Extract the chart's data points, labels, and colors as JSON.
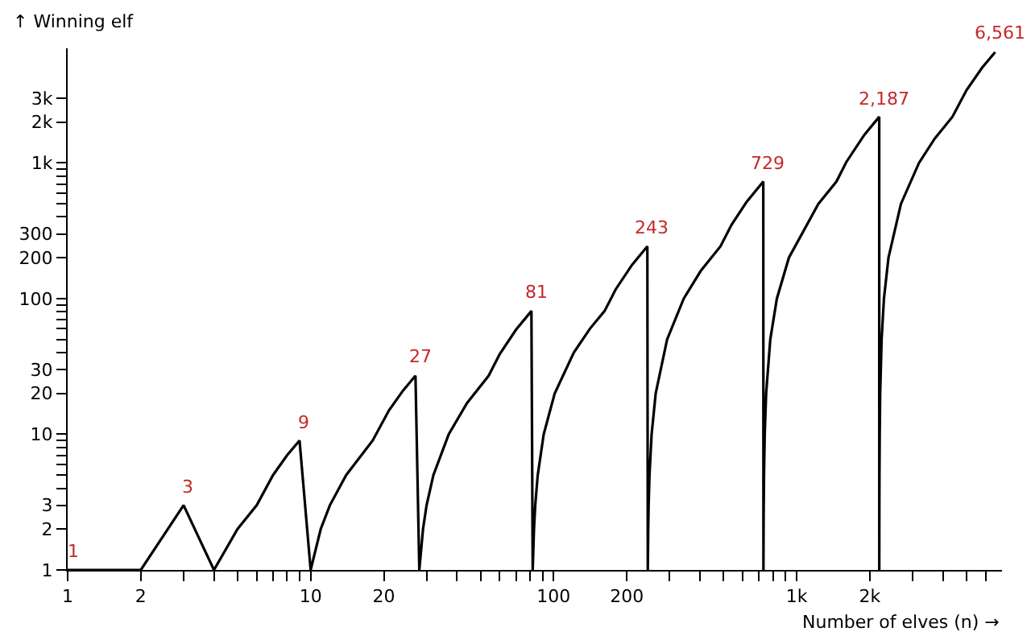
{
  "chart_data": {
    "type": "line",
    "xlabel": "Number of elves (n) →",
    "ylabel": "↑ Winning elf",
    "log": "xy",
    "marker": "none",
    "line_style": "solid",
    "xlim": [
      1,
      7000
    ],
    "ylim": [
      1,
      7000
    ],
    "xticks": [
      1,
      2,
      {
        "value": 3,
        "label": null
      },
      {
        "value": 4,
        "label": null
      },
      {
        "value": 5,
        "label": null
      },
      {
        "value": 6,
        "label": null
      },
      {
        "value": 7,
        "label": null
      },
      {
        "value": 8,
        "label": null
      },
      {
        "value": 9,
        "label": null
      },
      10,
      20,
      {
        "value": 30,
        "label": null
      },
      {
        "value": 40,
        "label": null
      },
      {
        "value": 50,
        "label": null
      },
      {
        "value": 60,
        "label": null
      },
      {
        "value": 70,
        "label": null
      },
      {
        "value": 80,
        "label": null
      },
      {
        "value": 90,
        "label": null
      },
      100,
      200,
      {
        "value": 300,
        "label": null
      },
      {
        "value": 400,
        "label": null
      },
      {
        "value": 500,
        "label": null
      },
      {
        "value": 600,
        "label": null
      },
      {
        "value": 700,
        "label": null
      },
      {
        "value": 800,
        "label": null
      },
      {
        "value": 900,
        "label": null
      },
      {
        "value": 1000,
        "label": "1k"
      },
      {
        "value": 2000,
        "label": "2k"
      },
      {
        "value": 3000,
        "label": null
      },
      {
        "value": 4000,
        "label": null
      },
      {
        "value": 5000,
        "label": null
      },
      {
        "value": 6000,
        "label": null
      }
    ],
    "yticks": [
      1,
      2,
      3,
      {
        "value": 4,
        "label": null
      },
      {
        "value": 5,
        "label": null
      },
      {
        "value": 6,
        "label": null
      },
      {
        "value": 7,
        "label": null
      },
      {
        "value": 8,
        "label": null
      },
      {
        "value": 9,
        "label": null
      },
      10,
      20,
      30,
      {
        "value": 40,
        "label": null
      },
      {
        "value": 50,
        "label": null
      },
      {
        "value": 60,
        "label": null
      },
      {
        "value": 70,
        "label": null
      },
      {
        "value": 80,
        "label": null
      },
      {
        "value": 90,
        "label": null
      },
      100,
      200,
      300,
      {
        "value": 400,
        "label": null
      },
      {
        "value": 500,
        "label": null
      },
      {
        "value": 600,
        "label": null
      },
      {
        "value": 700,
        "label": null
      },
      {
        "value": 800,
        "label": null
      },
      {
        "value": 900,
        "label": null
      },
      {
        "value": 1000,
        "label": "1k"
      },
      {
        "value": 2000,
        "label": "2k"
      },
      {
        "value": 3000,
        "label": "3k"
      }
    ],
    "series": [
      {
        "color": "#000000",
        "x": [
          1,
          2,
          3,
          4,
          5,
          6,
          7,
          8,
          9,
          10,
          11,
          12,
          14,
          18,
          21,
          24,
          27,
          28,
          29,
          30,
          32,
          37,
          44,
          54,
          60,
          70,
          81,
          82,
          83,
          84,
          86,
          91,
          101,
          121,
          141,
          162,
          180,
          210,
          243,
          244,
          245,
          246,
          248,
          253,
          263,
          293,
          343,
          403,
          486,
          540,
          620,
          729,
          730,
          731,
          732,
          734,
          739,
          749,
          779,
          829,
          929,
          1229,
          1458,
          1600,
          1900,
          2187,
          2188,
          2189,
          2190,
          2192,
          2197,
          2207,
          2237,
          2287,
          2387,
          2687,
          3187,
          3700,
          4374,
          5000,
          5800,
          6561
        ],
        "values": [
          1,
          1,
          3,
          1,
          2,
          3,
          5,
          7,
          9,
          1,
          2,
          3,
          5,
          9,
          15,
          21,
          27,
          1,
          2,
          3,
          5,
          10,
          17,
          27,
          39,
          59,
          81,
          1,
          2,
          3,
          5,
          10,
          20,
          40,
          60,
          81,
          117,
          177,
          243,
          1,
          2,
          3,
          5,
          10,
          20,
          50,
          100,
          160,
          243,
          351,
          511,
          729,
          1,
          2,
          3,
          5,
          10,
          20,
          50,
          100,
          200,
          500,
          729,
          1013,
          1613,
          2187,
          1,
          2,
          3,
          5,
          10,
          20,
          50,
          100,
          200,
          500,
          1000,
          1513,
          2187,
          3439,
          5039,
          6561
        ]
      }
    ],
    "annotations": [
      {
        "text": "1",
        "x": 1,
        "y": 1
      },
      {
        "text": "3",
        "x": 3,
        "y": 3
      },
      {
        "text": "9",
        "x": 9,
        "y": 9
      },
      {
        "text": "27",
        "x": 27,
        "y": 27
      },
      {
        "text": "81",
        "x": 81,
        "y": 81
      },
      {
        "text": "243",
        "x": 243,
        "y": 243
      },
      {
        "text": "729",
        "x": 729,
        "y": 729
      },
      {
        "text": "2,187",
        "x": 2187,
        "y": 2187
      },
      {
        "text": "6,561",
        "x": 6561,
        "y": 6561
      }
    ]
  }
}
